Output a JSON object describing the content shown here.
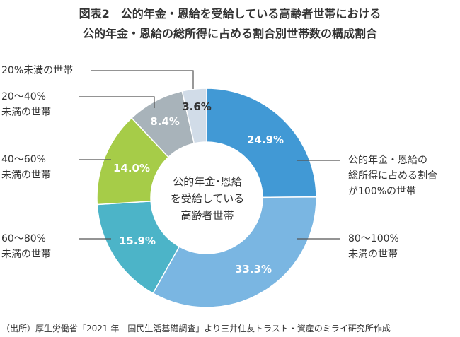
{
  "title_line1": "図表2　公的年金・恩給を受給している高齢者世帯における",
  "title_line2": "公的年金・恩給の総所得に占める割合別世帯数の構成割合",
  "center_label": [
    "公的年金･恩給",
    "を受給している",
    "高齢者世帯"
  ],
  "source": "（出所）厚生労働省「2021 年　国民生活基礎調査」より三井住友トラスト・資産のミライ研究所作成",
  "chart_data": {
    "type": "pie",
    "donut": true,
    "start": "top, clockwise",
    "categories": [
      "公的年金・恩給の総所得に占める割合が100%の世帯",
      "80〜100%未満の世帯",
      "60〜80%未満の世帯",
      "40〜60%未満の世帯",
      "20〜40%未満の世帯",
      "20%未満の世帯"
    ],
    "values": [
      24.9,
      33.3,
      15.9,
      14.0,
      8.4,
      3.6
    ],
    "value_labels": [
      "24.9%",
      "33.3%",
      "15.9%",
      "14.0%",
      "8.4%",
      "3.6%"
    ],
    "category_lines": [
      [
        "公的年金・恩給の",
        "総所得に占める割合",
        "が100%の世帯"
      ],
      [
        "80〜100%",
        "未満の世帯"
      ],
      [
        "60〜80%",
        "未満の世帯"
      ],
      [
        "40〜60%",
        "未満の世帯"
      ],
      [
        "20〜40%",
        "未満の世帯"
      ],
      [
        "20%未満の世帯"
      ]
    ],
    "colors": [
      "#4199d5",
      "#7ab6e2",
      "#4cb4c8",
      "#a6cc48",
      "#a8b3ba",
      "#d1dce8"
    ]
  }
}
